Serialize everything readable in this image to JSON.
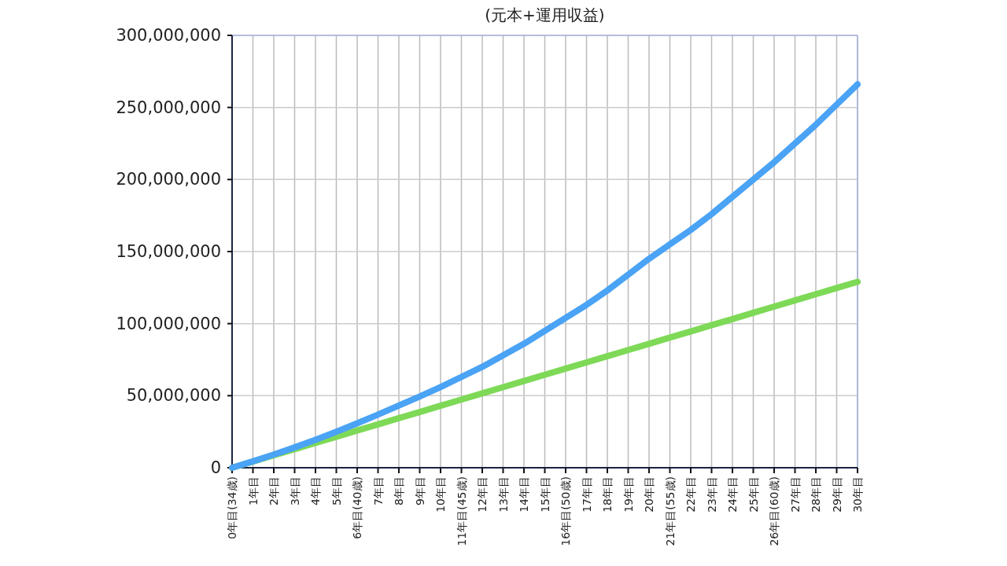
{
  "chart_data": {
    "type": "line",
    "title": "(元本+運用収益)",
    "categories": [
      "0年目(34歳)",
      "1年目",
      "2年目",
      "3年目",
      "4年目",
      "5年目",
      "6年目(40歳)",
      "7年目",
      "8年目",
      "9年目",
      "10年目",
      "11年目(45歳)",
      "12年目",
      "13年目",
      "14年目",
      "15年目",
      "16年目(50歳)",
      "17年目",
      "18年目",
      "19年目",
      "20年目",
      "21年目(55歳)",
      "22年目",
      "23年目",
      "24年目",
      "25年目",
      "26年目(60歳)",
      "27年目",
      "28年目",
      "29年目",
      "30年目"
    ],
    "series": [
      {
        "color": "#7ed957",
        "values": [
          0,
          4300000,
          8600000,
          12900000,
          17200000,
          21500000,
          25800000,
          30100000,
          34400000,
          38700000,
          43000000,
          47300000,
          51600000,
          55900000,
          60200000,
          64500000,
          68800000,
          73100000,
          77400000,
          81700000,
          86000000,
          90300000,
          94600000,
          98900000,
          103200000,
          107500000,
          111800000,
          116100000,
          120400000,
          124700000,
          129000000
        ]
      },
      {
        "color": "#4aa3f5",
        "values": [
          0,
          4400000,
          9100000,
          14100000,
          19400000,
          25000000,
          30800000,
          36900000,
          43200000,
          49400000,
          56000000,
          63000000,
          70000000,
          78000000,
          86000000,
          95000000,
          104000000,
          113000000,
          123000000,
          134000000,
          145000000,
          155000000,
          165000000,
          176000000,
          188000000,
          200000000,
          212000000,
          225000000,
          238000000,
          252000000,
          266000000
        ]
      }
    ],
    "ylim": [
      0,
      300000000
    ],
    "yticks": [
      {
        "value": 0,
        "label": "0"
      },
      {
        "value": 50000000,
        "label": "50,000,000"
      },
      {
        "value": 100000000,
        "label": "100,000,000"
      },
      {
        "value": 150000000,
        "label": "150,000,000"
      },
      {
        "value": 200000000,
        "label": "200,000,000"
      },
      {
        "value": 250000000,
        "label": "250,000,000"
      },
      {
        "value": 300000000,
        "label": "300,000,000"
      }
    ],
    "grid": true,
    "marker": "none",
    "line_style": "solid"
  }
}
